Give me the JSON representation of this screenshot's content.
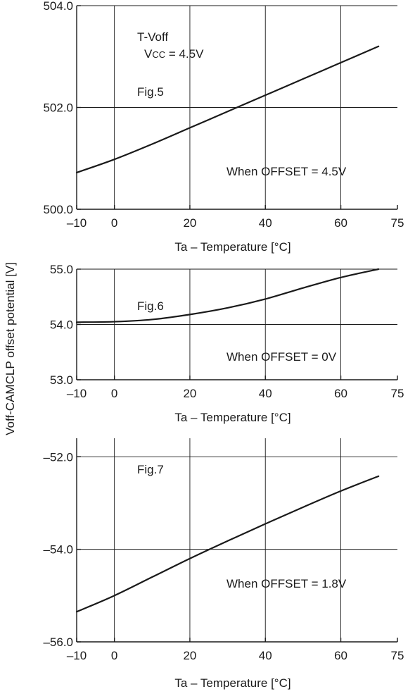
{
  "ylabel": "Voff-CAMCLP offset potential [V]",
  "chart_data": [
    {
      "type": "line",
      "figure_label": "Fig.5",
      "title_lines": [
        "T-Voff",
        "V",
        "CC",
        " = 4.5V"
      ],
      "annotation": "When OFFSET = 4.5V",
      "xlabel": "Ta – Temperature [°C]",
      "xlim": [
        -10,
        75
      ],
      "ylim": [
        500.0,
        504.0
      ],
      "x_ticks": [
        -10,
        0,
        20,
        40,
        60,
        75
      ],
      "x_tick_labels": [
        "–10",
        "0",
        "20",
        "40",
        "60",
        "75"
      ],
      "y_ticks": [
        500.0,
        502.0,
        504.0
      ],
      "y_tick_labels": [
        "500.0",
        "502.0",
        "504.0"
      ],
      "x_grid": [
        0,
        20,
        40,
        60
      ],
      "y_grid": [
        502.0,
        504.0
      ],
      "series": [
        {
          "x": [
            -10,
            0,
            10,
            20,
            30,
            40,
            50,
            60,
            70
          ],
          "y": [
            500.72,
            500.98,
            501.28,
            501.6,
            501.92,
            502.24,
            502.56,
            502.88,
            503.2
          ]
        }
      ]
    },
    {
      "type": "line",
      "figure_label": "Fig.6",
      "annotation": "When OFFSET = 0V",
      "xlabel": "Ta – Temperature [°C]",
      "xlim": [
        -10,
        75
      ],
      "ylim": [
        53.0,
        55.0
      ],
      "x_ticks": [
        -10,
        0,
        20,
        40,
        60,
        75
      ],
      "x_tick_labels": [
        "–10",
        "0",
        "20",
        "40",
        "60",
        "75"
      ],
      "y_ticks": [
        53.0,
        54.0,
        55.0
      ],
      "y_tick_labels": [
        "53.0",
        "54.0",
        "55.0"
      ],
      "x_grid": [
        0,
        20,
        40,
        60
      ],
      "y_grid": [
        54.0,
        55.0
      ],
      "series": [
        {
          "x": [
            -10,
            0,
            10,
            20,
            30,
            40,
            50,
            60,
            70
          ],
          "y": [
            54.04,
            54.05,
            54.09,
            54.18,
            54.3,
            54.46,
            54.66,
            54.85,
            55.0
          ]
        }
      ]
    },
    {
      "type": "line",
      "figure_label": "Fig.7",
      "annotation": "When OFFSET = 1.8V",
      "xlabel": "Ta – Temperature [°C]",
      "xlim": [
        -10,
        75
      ],
      "ylim": [
        -56.0,
        -51.6
      ],
      "x_ticks": [
        -10,
        0,
        20,
        40,
        60,
        75
      ],
      "x_tick_labels": [
        "–10",
        "0",
        "20",
        "40",
        "60",
        "75"
      ],
      "y_ticks": [
        -56.0,
        -54.0,
        -52.0
      ],
      "y_tick_labels": [
        "–56.0",
        "–54.0",
        "–52.0"
      ],
      "x_grid": [
        0,
        20,
        40,
        60
      ],
      "y_grid": [
        -54.0,
        -52.0
      ],
      "series": [
        {
          "x": [
            -10,
            0,
            10,
            20,
            30,
            40,
            50,
            60,
            70
          ],
          "y": [
            -55.35,
            -55.0,
            -54.6,
            -54.2,
            -53.82,
            -53.45,
            -53.09,
            -52.74,
            -52.42
          ]
        }
      ]
    }
  ]
}
